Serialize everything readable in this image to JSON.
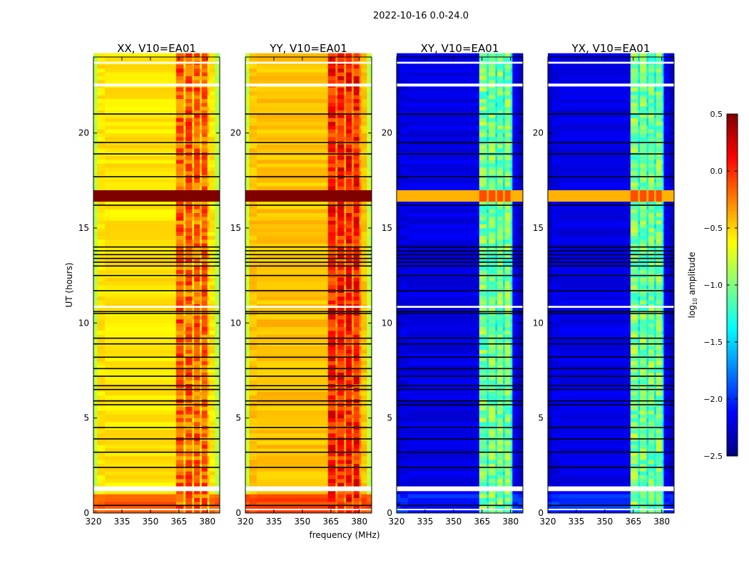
{
  "chart_data": {
    "type": "heatmap",
    "title": "2022-10-16 0.0-24.0",
    "xlabel": "frequency (MHz)",
    "ylabel": "UT (hours)",
    "xlim": [
      320,
      386.5
    ],
    "ylim": [
      0,
      24
    ],
    "xticks": [
      320,
      335,
      350,
      365,
      380
    ],
    "xtick_labels": [
      "320",
      "335",
      "350",
      "365",
      "380"
    ],
    "yticks": [
      0,
      5,
      10,
      15,
      20
    ],
    "ytick_labels": [
      "0",
      "5",
      "10",
      "15",
      "20"
    ],
    "colorbar": {
      "label_main": "log",
      "label_sub": "10",
      "label_rest": " amplitude",
      "range": [
        -2.5,
        0.5
      ],
      "ticks": [
        0.5,
        0.0,
        -0.5,
        -1.0,
        -1.5,
        -2.0,
        -2.5
      ],
      "tick_labels": [
        "0.5",
        "0.0",
        "−0.5",
        "−1.0",
        "−1.5",
        "−2.0",
        "−2.5"
      ],
      "colormap": "jet"
    },
    "band_channels_mhz": [
      [
        363.5,
        367.5
      ],
      [
        368.5,
        372
      ],
      [
        373,
        376
      ],
      [
        377,
        380
      ]
    ],
    "flagged_white_hours": [
      [
        23.65,
        23.75
      ],
      [
        22.45,
        22.6
      ],
      [
        10.8,
        10.9
      ],
      [
        1.15,
        1.4
      ],
      [
        0.15,
        0.22
      ]
    ],
    "black_line_hours": [
      21.0,
      19.5,
      18.9,
      17.7,
      16.2,
      14.0,
      13.8,
      13.6,
      13.4,
      13.2,
      13.0,
      12.5,
      11.7,
      10.6,
      10.5,
      9.2,
      8.9,
      8.2,
      7.6,
      7.2,
      6.7,
      6.5,
      5.9,
      5.7,
      4.5,
      3.9,
      3.2,
      2.4,
      0.4
    ],
    "rfi_burst_hours": [
      16.3,
      17.0
    ],
    "panels": [
      {
        "title": "XX, V10=EA01",
        "background": -0.55,
        "edge": -0.85,
        "band": -0.15,
        "burst": 0.5,
        "low_hours_level": -0.15
      },
      {
        "title": "YY, V10=EA01",
        "background": -0.45,
        "edge": -0.8,
        "band": 0.05,
        "burst": 0.5,
        "low_hours_level": -0.1
      },
      {
        "title": "XY, V10=EA01",
        "background": -2.2,
        "edge": -2.3,
        "band": -1.0,
        "burst": -0.1,
        "low_hours_level": -2.0
      },
      {
        "title": "YX, V10=EA01",
        "background": -2.2,
        "edge": -2.3,
        "band": -1.0,
        "burst": -0.1,
        "low_hours_level": -2.0
      }
    ]
  }
}
